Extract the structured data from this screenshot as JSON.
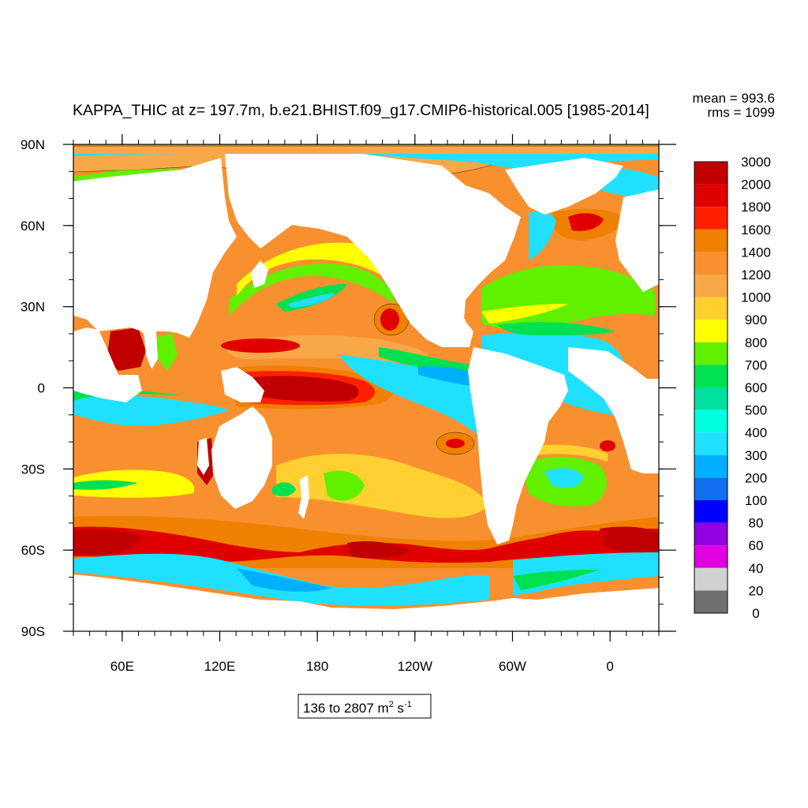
{
  "chart_data": {
    "type": "heatmap",
    "title": "KAPPA_THIC at z= 197.7m, b.e21.BHIST.f09_g17.CMIP6-historical.005 [1985-2014]",
    "stats": {
      "mean": "mean = 993.6",
      "rms": "rms = 1099"
    },
    "range_label": {
      "prefix": "136 to 2807 m",
      "unit_exp1": "2",
      "mid": " s",
      "unit_exp2": "-1"
    },
    "x_ticks": [
      {
        "lon": 60,
        "label": "60E"
      },
      {
        "lon": 120,
        "label": "120E"
      },
      {
        "lon": 180,
        "label": "180"
      },
      {
        "lon": 240,
        "label": "120W"
      },
      {
        "lon": 300,
        "label": "60W"
      },
      {
        "lon": 360,
        "label": "0"
      }
    ],
    "y_ticks": [
      {
        "lat": 90,
        "label": "90N"
      },
      {
        "lat": 60,
        "label": "60N"
      },
      {
        "lat": 30,
        "label": "30N"
      },
      {
        "lat": 0,
        "label": "0"
      },
      {
        "lat": -30,
        "label": "30S"
      },
      {
        "lat": -60,
        "label": "60S"
      },
      {
        "lat": -90,
        "label": "90S"
      }
    ],
    "xlim": [
      30,
      390
    ],
    "ylim": [
      -90,
      90
    ],
    "colorbar": {
      "levels": [
        "3000",
        "2000",
        "1800",
        "1600",
        "1400",
        "1200",
        "1000",
        "900",
        "800",
        "700",
        "600",
        "500",
        "400",
        "300",
        "200",
        "100",
        "80",
        "60",
        "40",
        "20",
        "0"
      ],
      "colors": [
        "#c00000",
        "#e00000",
        "#ff2000",
        "#f08000",
        "#f89030",
        "#f8a848",
        "#ffd030",
        "#ffff00",
        "#60f000",
        "#00e050",
        "#00e0a0",
        "#00ffe0",
        "#20e0ff",
        "#00b0ff",
        "#1070f0",
        "#0000ff",
        "#9000e0",
        "#e000e0",
        "#d0d0d0",
        "#707070"
      ]
    }
  }
}
